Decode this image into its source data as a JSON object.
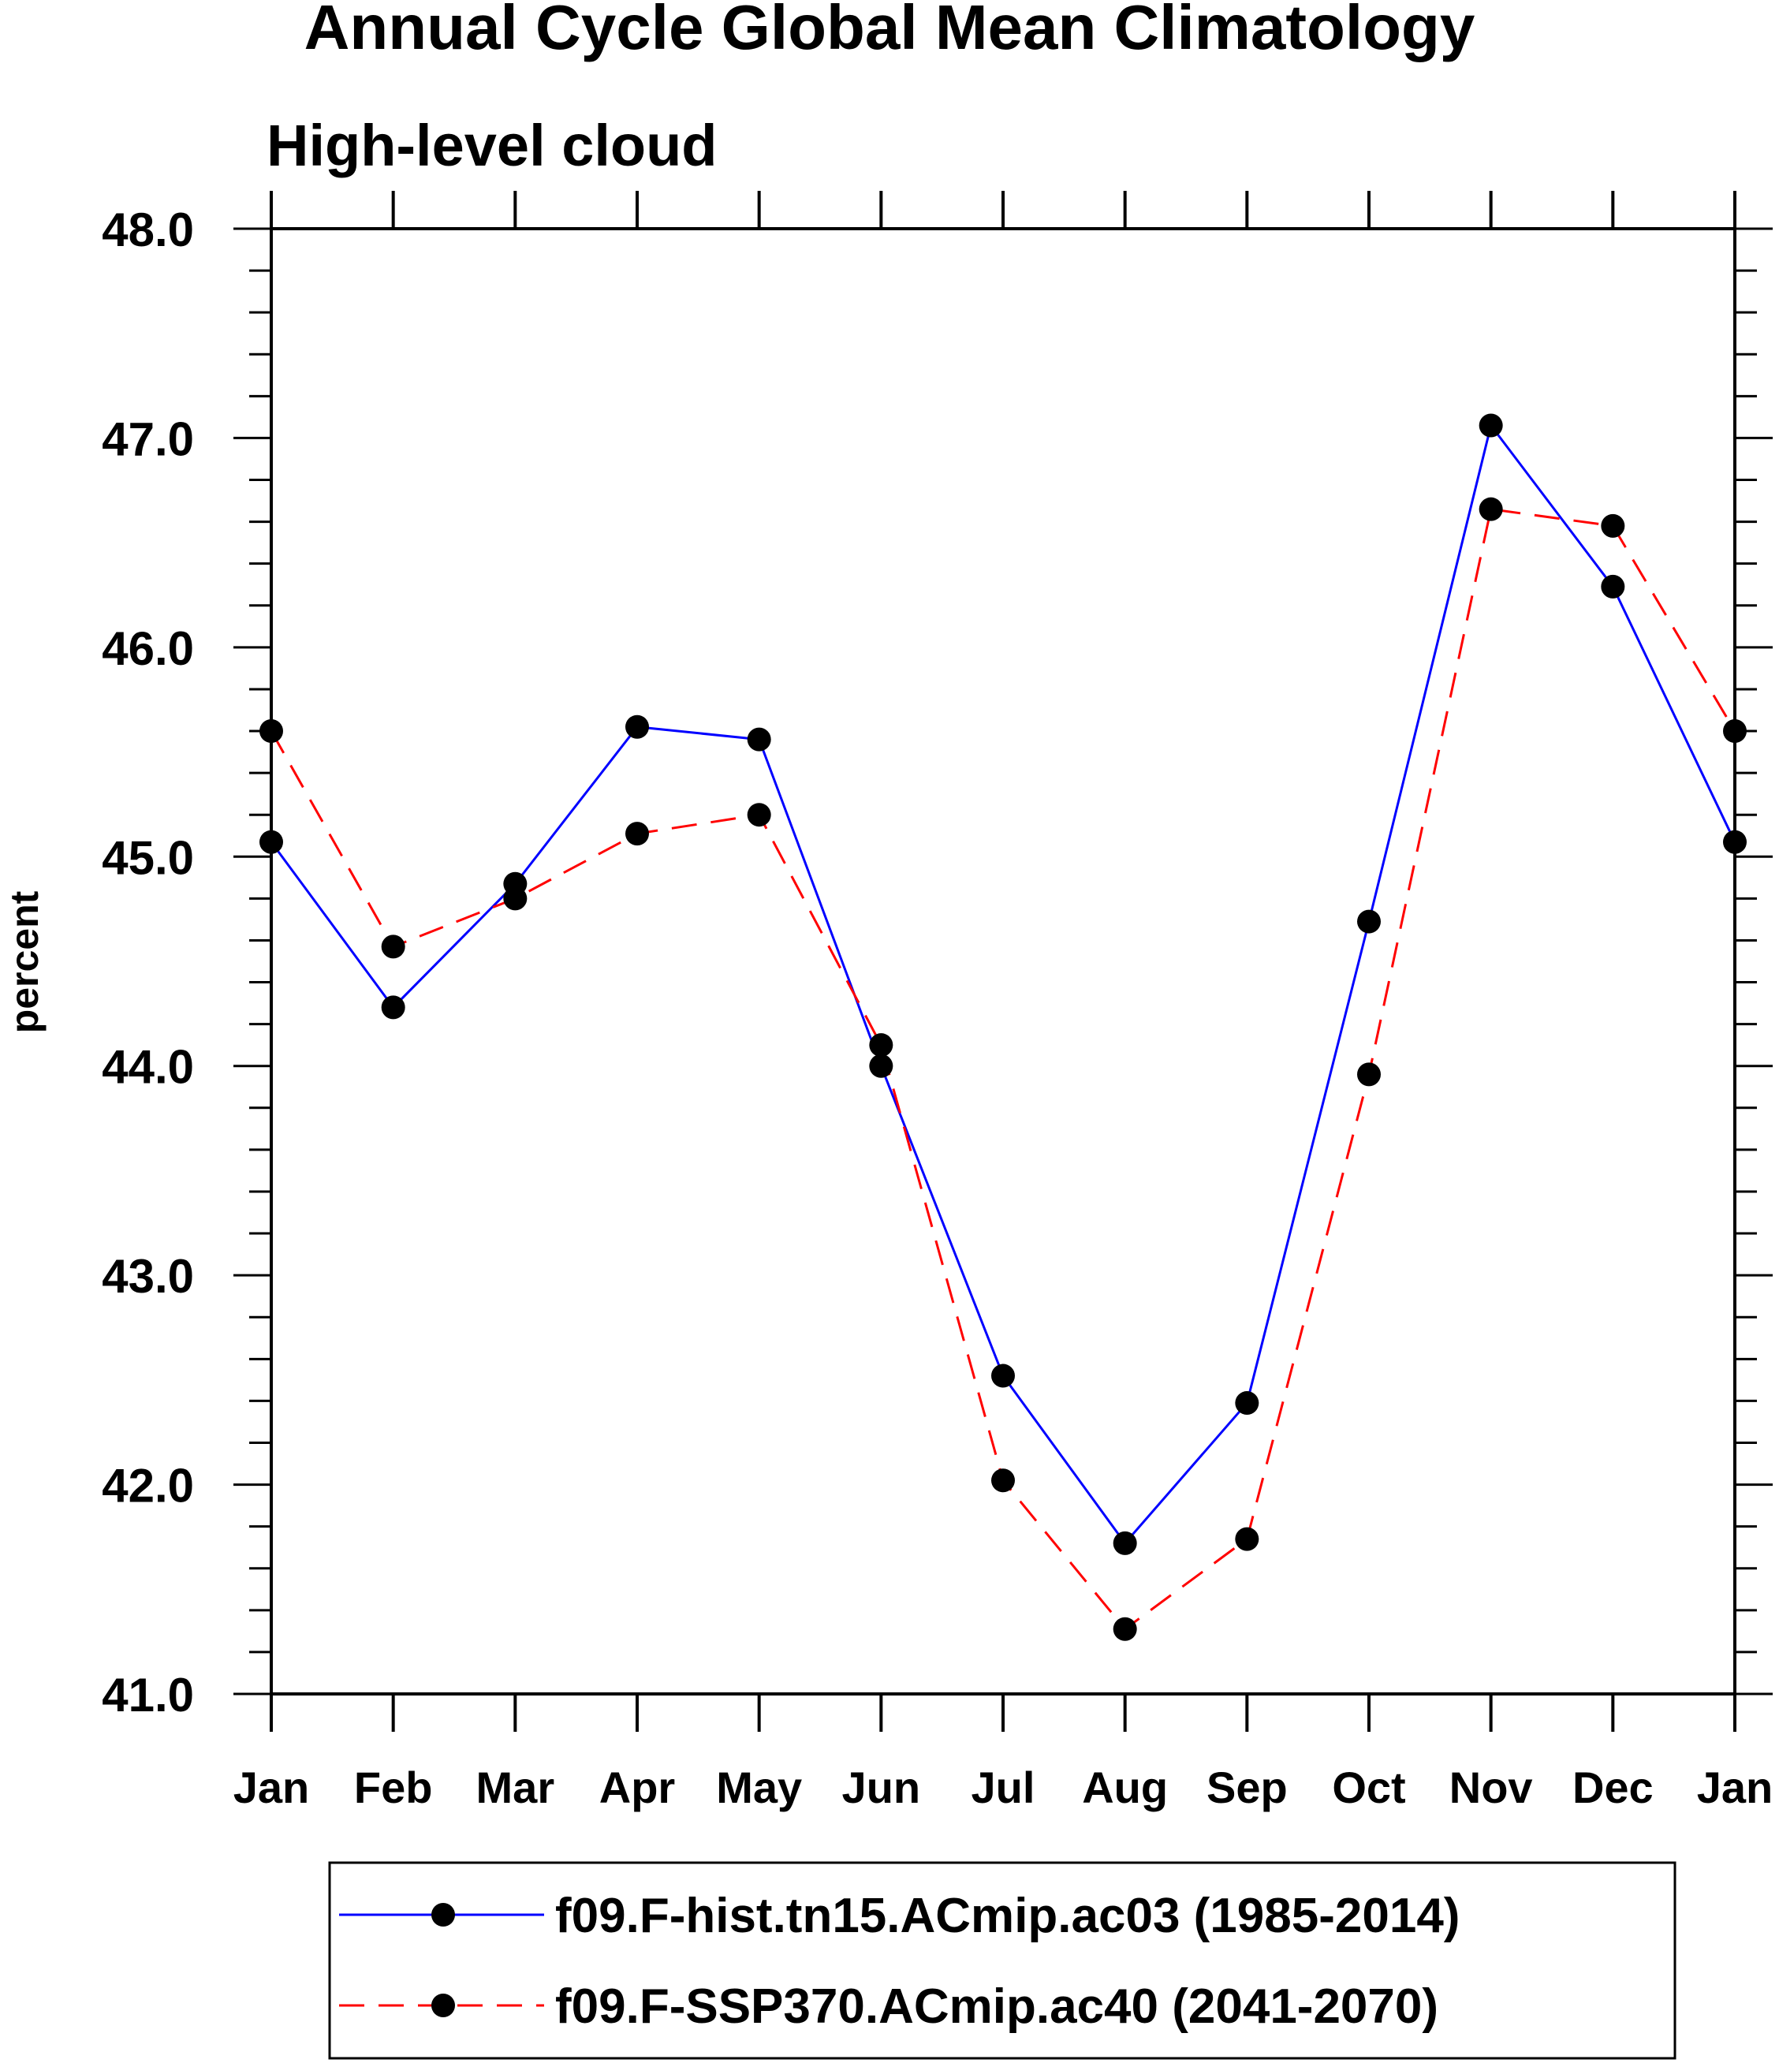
{
  "chart_data": {
    "type": "line",
    "title": "Annual Cycle Global Mean Climatology",
    "subtitle": "High-level cloud",
    "xlabel": "",
    "ylabel": "percent",
    "categories": [
      "Jan",
      "Feb",
      "Mar",
      "Apr",
      "May",
      "Jun",
      "Jul",
      "Aug",
      "Sep",
      "Oct",
      "Nov",
      "Dec",
      "Jan"
    ],
    "ylim": [
      41.0,
      48.0
    ],
    "yticks": [
      "41.0",
      "42.0",
      "43.0",
      "44.0",
      "45.0",
      "46.0",
      "47.0",
      "48.0"
    ],
    "grid": false,
    "legend_position": "bottom",
    "series": [
      {
        "name": "f09.F-hist.tn15.ACmip.ac03 (1985-2014)",
        "color": "#0000ff",
        "style": "solid",
        "marker": "filled-circle",
        "values": [
          45.07,
          44.28,
          44.87,
          45.62,
          45.56,
          44.0,
          42.52,
          41.72,
          42.39,
          44.69,
          47.06,
          46.29,
          45.07
        ]
      },
      {
        "name": "f09.F-SSP370.ACmip.ac40 (2041-2070)",
        "color": "#ff0000",
        "style": "dashed",
        "marker": "filled-circle",
        "values": [
          45.6,
          44.57,
          44.8,
          45.11,
          45.2,
          44.1,
          42.02,
          41.31,
          41.74,
          43.96,
          46.66,
          46.58,
          45.6
        ]
      }
    ]
  }
}
